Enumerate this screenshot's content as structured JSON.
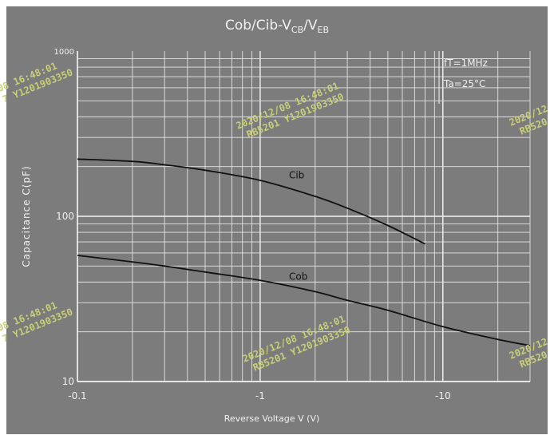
{
  "chart_data": {
    "type": "line",
    "title_parts": [
      "Cob/Cib-V",
      "CB",
      "/V",
      "EB"
    ],
    "ylabel": "Capacitance  C(pF)",
    "xlabel": "Reverse Voltage  V (V)",
    "x_scale": "log",
    "y_scale": "log",
    "xlim": [
      0.1,
      30
    ],
    "ylim": [
      10,
      1000
    ],
    "x_ticks": [
      {
        "value": 0.1,
        "label": "-0.1"
      },
      {
        "value": 1,
        "label": "-1"
      },
      {
        "value": 10,
        "label": "-10"
      }
    ],
    "y_ticks": [
      {
        "value": 10,
        "label": "10"
      },
      {
        "value": 100,
        "label": "100"
      },
      {
        "value": 1000,
        "label": "1000"
      }
    ],
    "grid": true,
    "annotations": [
      "fT=1MHz",
      "Ta=25°C"
    ],
    "series": [
      {
        "name": "Cib",
        "x": [
          0.1,
          0.2,
          0.3,
          0.5,
          1,
          2,
          3,
          5,
          8
        ],
        "y": [
          222,
          215,
          205,
          190,
          165,
          132,
          112,
          88,
          68
        ]
      },
      {
        "name": "Cob",
        "x": [
          0.1,
          0.2,
          0.3,
          0.5,
          1,
          2,
          3,
          5,
          10,
          20,
          30
        ],
        "y": [
          58,
          53,
          50,
          46,
          41,
          35,
          31,
          27,
          21.5,
          18,
          16.5
        ]
      }
    ],
    "watermarks": [
      {
        "line1": "/08  16:48:01",
        "line2": "7 Y1201903350"
      },
      {
        "line1": "2020/12/08  16:48:01",
        "line2": "RB5201 Y1201903350"
      },
      {
        "line1": "2020/12",
        "line2": "RB520"
      },
      {
        "line1": "/08  16:48:01",
        "line2": "7 Y1201903350"
      },
      {
        "line1": "2020/12/08  16:48:01",
        "line2": "RB5201 Y1201903350"
      },
      {
        "line1": "2020/12",
        "line2": "RB520"
      }
    ]
  }
}
